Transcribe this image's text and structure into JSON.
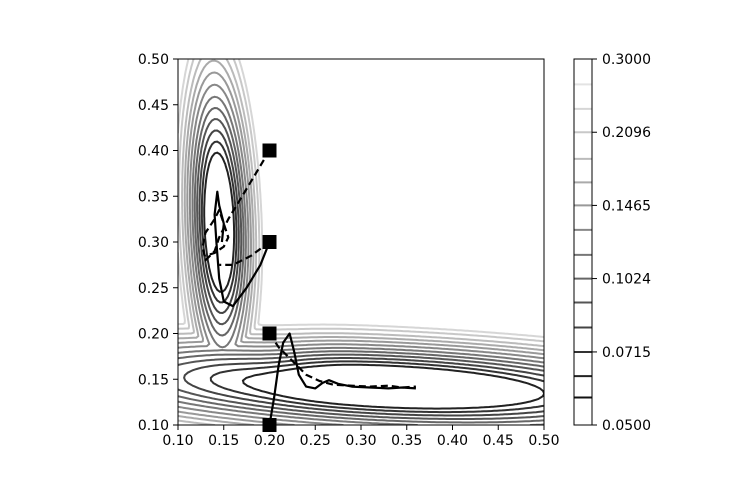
{
  "chart_data": {
    "type": "contour",
    "title": "",
    "xlabel": "",
    "ylabel": "",
    "xlim": [
      0.1,
      0.5
    ],
    "ylim": [
      0.1,
      0.5
    ],
    "x_ticks": [
      "0.10",
      "0.15",
      "0.20",
      "0.25",
      "0.30",
      "0.35",
      "0.40",
      "0.45",
      "0.50"
    ],
    "y_ticks": [
      "0.10",
      "0.15",
      "0.20",
      "0.25",
      "0.30",
      "0.35",
      "0.40",
      "0.45",
      "0.50"
    ],
    "colorbar": {
      "scale": "log",
      "range": [
        0.05,
        0.3
      ],
      "tick_labels": [
        "0.0500",
        "0.0715",
        "0.1024",
        "0.1465",
        "0.2096",
        "0.3000"
      ],
      "levels": [
        0.0572,
        0.0635,
        0.0715,
        0.0806,
        0.0911,
        0.1024,
        0.115,
        0.13,
        0.1465,
        0.164,
        0.184,
        0.2096,
        0.235,
        0.265
      ],
      "colormap": "greys_reversed",
      "colors": [
        "#111111",
        "#222222",
        "#333333",
        "#444444",
        "#555555",
        "#666666",
        "#777777",
        "#888888",
        "#999999",
        "#aaaaaa",
        "#bbbbbb",
        "#c8c8c8",
        "#d6d6d6",
        "#e3e3e3"
      ]
    },
    "contour_levels": [
      0.0635,
      0.0715,
      0.0806,
      0.0911,
      0.1024,
      0.115,
      0.13,
      0.1465,
      0.164,
      0.184,
      0.2096,
      0.235
    ],
    "markers": [
      {
        "x": 0.2,
        "y": 0.4
      },
      {
        "x": 0.2,
        "y": 0.3
      },
      {
        "x": 0.2,
        "y": 0.2
      },
      {
        "x": 0.2,
        "y": 0.1
      }
    ],
    "trajectories": [
      {
        "style": "dashed",
        "points": [
          [
            0.2,
            0.4
          ],
          [
            0.185,
            0.375
          ],
          [
            0.17,
            0.35
          ],
          [
            0.155,
            0.325
          ],
          [
            0.145,
            0.305
          ],
          [
            0.14,
            0.29
          ],
          [
            0.13,
            0.28
          ],
          [
            0.127,
            0.295
          ],
          [
            0.13,
            0.31
          ],
          [
            0.14,
            0.325
          ],
          [
            0.145,
            0.335
          ],
          [
            0.15,
            0.32
          ],
          [
            0.155,
            0.305
          ],
          [
            0.15,
            0.295
          ],
          [
            0.14,
            0.288
          ],
          [
            0.13,
            0.285
          ]
        ]
      },
      {
        "style": "dashed",
        "points": [
          [
            0.2,
            0.3
          ],
          [
            0.18,
            0.285
          ],
          [
            0.16,
            0.275
          ],
          [
            0.145,
            0.275
          ]
        ]
      },
      {
        "style": "solid",
        "points": [
          [
            0.2,
            0.3
          ],
          [
            0.19,
            0.275
          ],
          [
            0.175,
            0.25
          ],
          [
            0.16,
            0.23
          ],
          [
            0.15,
            0.235
          ],
          [
            0.145,
            0.26
          ],
          [
            0.142,
            0.3
          ],
          [
            0.14,
            0.33
          ],
          [
            0.143,
            0.355
          ],
          [
            0.145,
            0.34
          ],
          [
            0.15,
            0.32
          ],
          [
            0.148,
            0.3
          ]
        ]
      },
      {
        "style": "dashed",
        "points": [
          [
            0.2,
            0.2
          ],
          [
            0.21,
            0.185
          ],
          [
            0.225,
            0.17
          ],
          [
            0.24,
            0.155
          ],
          [
            0.255,
            0.148
          ],
          [
            0.27,
            0.144
          ],
          [
            0.29,
            0.143
          ],
          [
            0.31,
            0.142
          ],
          [
            0.33,
            0.143
          ],
          [
            0.345,
            0.141
          ],
          [
            0.36,
            0.142
          ]
        ]
      },
      {
        "style": "solid",
        "points": [
          [
            0.2,
            0.1
          ],
          [
            0.205,
            0.13
          ],
          [
            0.21,
            0.165
          ],
          [
            0.215,
            0.19
          ],
          [
            0.222,
            0.2
          ],
          [
            0.227,
            0.18
          ],
          [
            0.232,
            0.155
          ],
          [
            0.24,
            0.142
          ],
          [
            0.25,
            0.14
          ],
          [
            0.258,
            0.146
          ],
          [
            0.265,
            0.149
          ],
          [
            0.275,
            0.145
          ],
          [
            0.29,
            0.142
          ],
          [
            0.31,
            0.141
          ],
          [
            0.33,
            0.14
          ],
          [
            0.345,
            0.141
          ],
          [
            0.36,
            0.14
          ]
        ]
      }
    ]
  }
}
